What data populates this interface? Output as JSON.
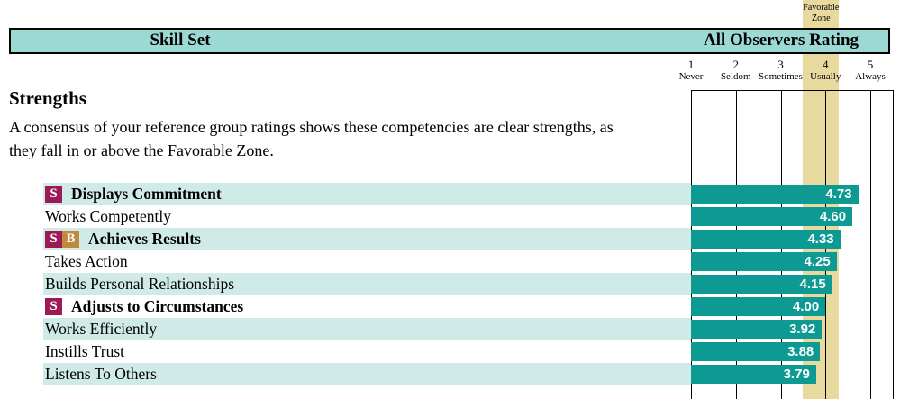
{
  "header": {
    "skill_set": "Skill Set",
    "all_observers": "All Observers Rating"
  },
  "favorable_zone": {
    "label_lines": [
      "Favorable",
      "Zone"
    ]
  },
  "section": {
    "title": "Strengths",
    "description": "A consensus of your reference group ratings shows these competencies are clear strengths, as\nthey fall in or above the Favorable Zone."
  },
  "chart_data": {
    "type": "bar",
    "orientation": "horizontal",
    "title": "All Observers Rating",
    "categories": [
      "Displays Commitment",
      "Works Competently",
      "Achieves Results",
      "Takes Action",
      "Builds Personal Relationships",
      "Adjusts to Circumstances",
      "Works Efficiently",
      "Instills Trust",
      "Listens To Others"
    ],
    "values": [
      4.73,
      4.6,
      4.33,
      4.25,
      4.15,
      4.0,
      3.92,
      3.88,
      3.79
    ],
    "value_labels": [
      "4.73",
      "4.60",
      "4.33",
      "4.25",
      "4.15",
      "4.00",
      "3.92",
      "3.88",
      "3.79"
    ],
    "badges": [
      "S",
      null,
      "SB",
      null,
      null,
      "S",
      null,
      null,
      null
    ],
    "xlim": [
      1,
      5
    ],
    "x_ticks": [
      {
        "value": "1",
        "label": "Never"
      },
      {
        "value": "2",
        "label": "Seldom"
      },
      {
        "value": "3",
        "label": "Sometimes"
      },
      {
        "value": "4",
        "label": "Usually"
      },
      {
        "value": "5",
        "label": "Always"
      }
    ],
    "favorable_zone": {
      "x_from": 3.5,
      "x_to": 4.3,
      "label": "Favorable Zone"
    },
    "grid": true,
    "legend": false
  },
  "colors": {
    "header_bg": "#9cd9d2",
    "row_alt": "#cfeae7",
    "bar": "#0d9a92",
    "band": "#e8d99f",
    "badge_s": "#9c1b56",
    "badge_b": "#bf8a3d"
  }
}
